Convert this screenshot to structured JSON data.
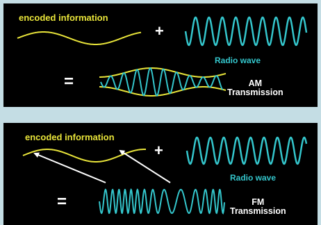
{
  "colors": {
    "background": "#c4dde4",
    "panel": "#000000",
    "signal": "#e9e53a",
    "carrier": "#34c6cc",
    "text": "#ffffff"
  },
  "am_panel": {
    "signal_label": "encoded information",
    "plus": "+",
    "carrier_label": "Radio wave",
    "equals": "=",
    "modulation_line1": "AM",
    "modulation_line2": "Transmission"
  },
  "fm_panel": {
    "signal_label": "encoded information",
    "plus": "+",
    "carrier_label": "Radio wave",
    "equals": "=",
    "modulation_line1": "FM",
    "modulation_line2": "Transmission"
  }
}
